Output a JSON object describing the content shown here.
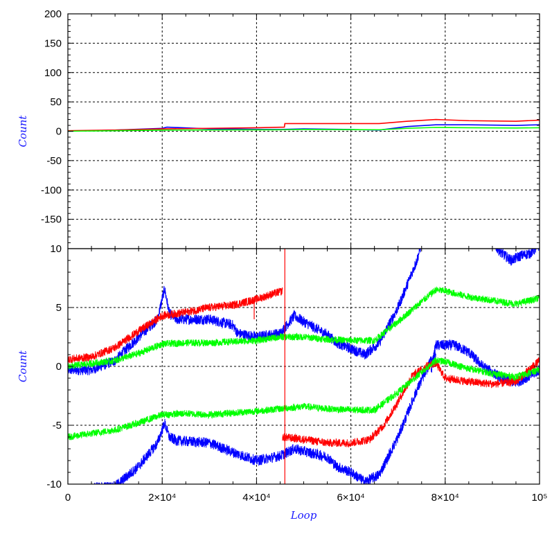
{
  "chart_data": [
    {
      "type": "line",
      "panel": "top",
      "title": "",
      "xlabel": "",
      "ylabel": "Count",
      "xlim": [
        0,
        100000
      ],
      "ylim": [
        -200,
        200
      ],
      "yticks": [
        {
          "value": 200,
          "label": "200"
        },
        {
          "value": 150,
          "label": "150"
        },
        {
          "value": 100,
          "label": "100"
        },
        {
          "value": 50,
          "label": "50"
        },
        {
          "value": 0,
          "label": "0"
        },
        {
          "value": -50,
          "label": "-50"
        },
        {
          "value": -100,
          "label": "-100"
        },
        {
          "value": -150,
          "label": "-150"
        }
      ],
      "grid": true,
      "colors": {
        "blue": "#0000ff",
        "red": "#ff0000",
        "green": "#00ff00"
      },
      "series": [
        {
          "color": "blue",
          "x": [
            0,
            10000,
            20000,
            21000,
            30000,
            45000,
            50000,
            60000,
            66000,
            72000,
            78000,
            85000,
            95000,
            100000
          ],
          "values": [
            0,
            2,
            5,
            7,
            4,
            3,
            4,
            3,
            2,
            8,
            11,
            11,
            10,
            11
          ]
        },
        {
          "color": "red",
          "x": [
            0,
            10000,
            20000,
            30000,
            40000,
            45900,
            46000,
            55000,
            66000,
            72000,
            78000,
            85000,
            95000,
            100000
          ],
          "values": [
            1,
            2,
            4,
            5,
            6,
            7,
            13,
            13,
            13,
            17,
            20,
            18,
            17,
            19
          ]
        },
        {
          "color": "green",
          "x": [
            0,
            20000,
            45000,
            50000,
            66000,
            72000,
            78000,
            85000,
            95000,
            100000
          ],
          "values": [
            0,
            2,
            2.5,
            3,
            2.5,
            5,
            6.5,
            6,
            5.5,
            6
          ]
        }
      ]
    },
    {
      "type": "line",
      "panel": "bottom",
      "title": "",
      "xlabel": "Loop",
      "ylabel": "Count",
      "xlim": [
        0,
        100000
      ],
      "ylim": [
        -10,
        10
      ],
      "xticks": [
        {
          "value": 0,
          "label": "0"
        },
        {
          "value": 20000,
          "label": "2×10⁴"
        },
        {
          "value": 40000,
          "label": "4×10⁴"
        },
        {
          "value": 60000,
          "label": "6×10⁴"
        },
        {
          "value": 80000,
          "label": "8×10⁴"
        },
        {
          "value": 100000,
          "label": "10⁵"
        }
      ],
      "yticks": [
        {
          "value": 10,
          "label": "10"
        },
        {
          "value": 5,
          "label": "5"
        },
        {
          "value": 0,
          "label": "0"
        },
        {
          "value": -5,
          "label": "-5"
        },
        {
          "value": -10,
          "label": "-10"
        }
      ],
      "grid": true,
      "colors": {
        "blue": "#0000ff",
        "red": "#ff0000",
        "green": "#00ff00"
      },
      "series": [
        {
          "color": "blue",
          "noise": 0.45,
          "x": [
            0,
            5000,
            10000,
            15000,
            19000,
            20500,
            21500,
            23000,
            30000,
            35000,
            36000,
            40000,
            45000,
            48000,
            50000,
            55000,
            57000,
            60000,
            63000,
            66000,
            70000,
            74000,
            75000
          ],
          "values": [
            -0.3,
            -0.3,
            0.5,
            2.5,
            4.0,
            6.6,
            4.5,
            4.0,
            4.0,
            3.5,
            2.8,
            2.5,
            2.8,
            4.3,
            3.8,
            2.7,
            2.0,
            1.5,
            1.0,
            2.0,
            5.0,
            9.0,
            10.5
          ]
        },
        {
          "color": "blue",
          "noise": 0.45,
          "x": [
            90000,
            92000,
            94000,
            96000,
            98000,
            100000
          ],
          "values": [
            10.5,
            9.6,
            9.0,
            9.4,
            9.6,
            10.3
          ]
        },
        {
          "color": "blue",
          "noise": 0.45,
          "x": [
            77000,
            78000,
            82000,
            85000,
            88000,
            92000,
            95000,
            98000,
            100000
          ],
          "values": [
            -0.5,
            1.8,
            1.8,
            1.2,
            0.0,
            -1.0,
            -1.4,
            -0.8,
            -0.3
          ]
        },
        {
          "color": "blue",
          "noise": 0.45,
          "x": [
            5000,
            10000,
            15000,
            19000,
            20500,
            21500,
            23000,
            30000,
            35000,
            40000,
            45000,
            48000,
            55000,
            57000,
            60000,
            63000,
            66000,
            70000,
            74000,
            77000,
            78000
          ],
          "values": [
            -10.3,
            -10.2,
            -8.5,
            -6.5,
            -4.8,
            -6.0,
            -6.3,
            -6.5,
            -7.3,
            -8.0,
            -7.6,
            -7.0,
            -7.7,
            -8.5,
            -9.0,
            -9.8,
            -9.2,
            -6.0,
            -2.0,
            0.5,
            1.0
          ]
        },
        {
          "color": "red",
          "noise": 0.35,
          "x": [
            0,
            5000,
            10000,
            15000,
            20000,
            25000,
            30000,
            35000,
            40000,
            43000,
            45500
          ],
          "values": [
            0.6,
            0.8,
            1.6,
            3.0,
            4.3,
            4.6,
            5.0,
            5.2,
            5.7,
            6.1,
            6.4
          ]
        },
        {
          "color": "red",
          "noise": 0.35,
          "x": [
            45500,
            50000,
            55000,
            60000,
            64000,
            67000,
            70000,
            73000,
            76000,
            78000,
            80000,
            85000,
            90000,
            95000,
            100000
          ],
          "values": [
            -6.0,
            -6.2,
            -6.5,
            -6.5,
            -6.2,
            -5.0,
            -3.0,
            -0.8,
            0.0,
            0.3,
            -1.0,
            -1.3,
            -1.5,
            -1.3,
            0.5
          ]
        },
        {
          "color": "green",
          "noise": 0.3,
          "x": [
            0,
            10000,
            15000,
            20000,
            25000,
            30000,
            40000,
            45000,
            50000,
            55000,
            60000,
            65000,
            70000,
            75000,
            78000,
            80000,
            85000,
            90000,
            95000,
            100000
          ],
          "values": [
            0.0,
            0.5,
            1.1,
            1.9,
            2.0,
            2.0,
            2.2,
            2.5,
            2.5,
            2.3,
            2.2,
            2.2,
            3.8,
            5.5,
            6.5,
            6.4,
            5.9,
            5.6,
            5.3,
            5.8
          ]
        },
        {
          "color": "green",
          "noise": 0.3,
          "x": [
            0,
            10000,
            15000,
            20000,
            25000,
            30000,
            40000,
            45000,
            50000,
            55000,
            60000,
            65000,
            70000,
            75000,
            78000,
            80000,
            85000,
            90000,
            95000,
            100000
          ],
          "values": [
            -6.0,
            -5.4,
            -4.8,
            -4.1,
            -4.0,
            -4.1,
            -3.8,
            -3.6,
            -3.4,
            -3.6,
            -3.7,
            -3.7,
            -2.2,
            -0.5,
            0.5,
            0.4,
            -0.2,
            -0.6,
            -0.9,
            -0.3
          ]
        }
      ],
      "spikes": [
        {
          "color": "red",
          "x": 46000,
          "y1": -10,
          "y2": 10
        },
        {
          "color": "red",
          "x": 39500,
          "y1": 4.0,
          "y2": 5.6
        }
      ]
    }
  ]
}
